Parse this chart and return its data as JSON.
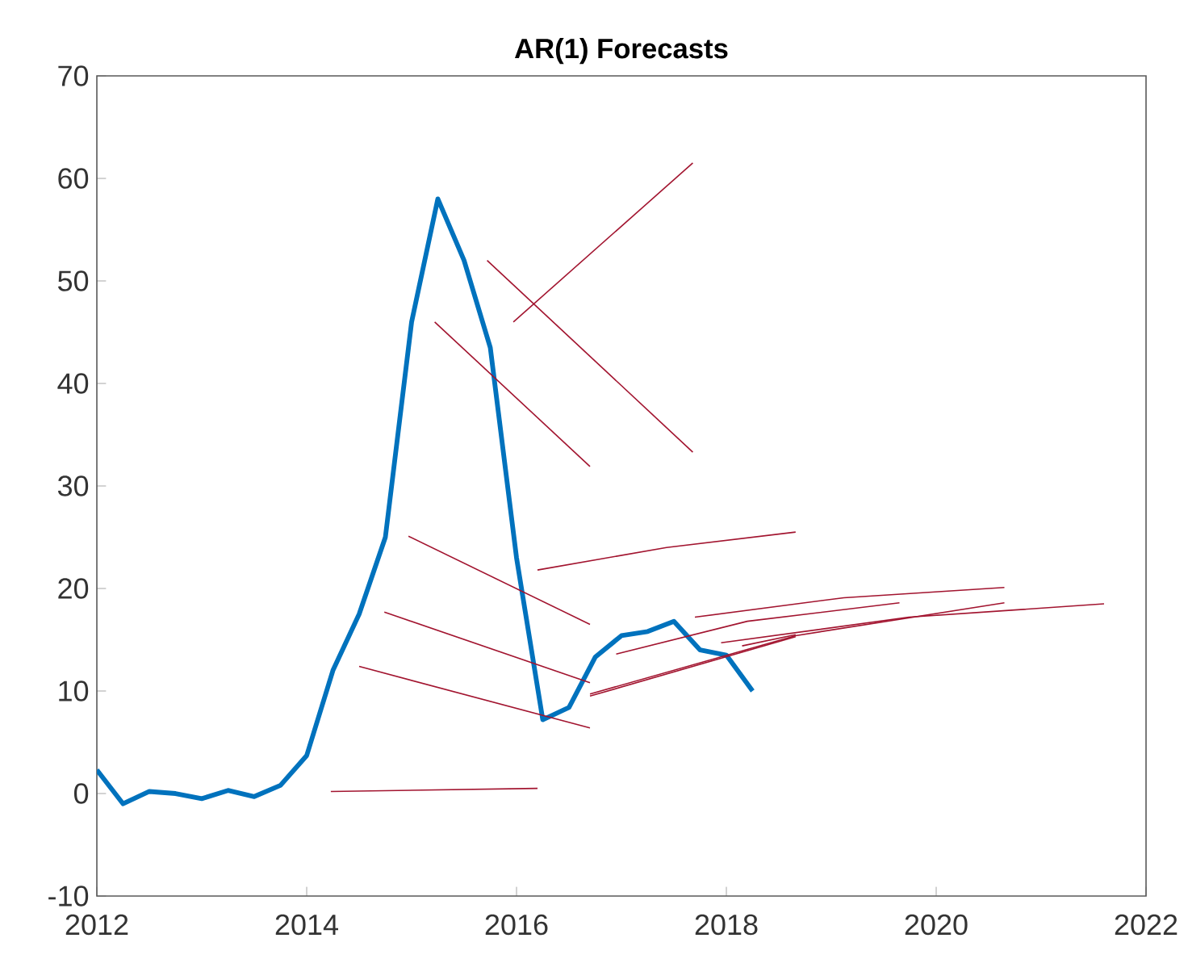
{
  "chart_data": {
    "type": "line",
    "title": "AR(1) Forecasts",
    "xlim": [
      2012,
      2022
    ],
    "xticks": [
      2012,
      2014,
      2016,
      2018,
      2020,
      2022
    ],
    "ylim": [
      -10,
      70
    ],
    "yticks": [
      -10,
      0,
      10,
      20,
      30,
      40,
      50,
      60,
      70
    ],
    "grid": false,
    "marker": "none",
    "line_style": "solid",
    "series": [
      {
        "color": "#0072bd",
        "x": [
          2012.0,
          2012.25,
          2012.5,
          2012.75,
          2013.0,
          2013.25,
          2013.5,
          2013.75,
          2014.0,
          2014.25,
          2014.5,
          2014.75,
          2015.0,
          2015.25,
          2015.5,
          2015.75,
          2016.0,
          2016.25,
          2016.5,
          2016.75,
          2017.0,
          2017.25,
          2017.5,
          2017.75,
          2018.0,
          2018.25
        ],
        "values": [
          2.3,
          -1,
          0.2,
          0,
          -0.5,
          0.3,
          -0.3,
          0.8,
          3.7,
          12,
          17.5,
          25,
          46,
          58,
          52,
          43.5,
          23,
          7.2,
          8.4,
          13.3,
          15.4,
          15.8,
          16.8,
          14,
          13.5,
          10
        ]
      },
      {
        "color": "#a2142f",
        "x": [
          2014.23,
          2016.2
        ],
        "values": [
          0.2,
          0.5
        ]
      },
      {
        "color": "#a2142f",
        "x": [
          2014.5,
          2016.7
        ],
        "values": [
          12.4,
          6.4
        ]
      },
      {
        "color": "#a2142f",
        "x": [
          2014.74,
          2016.7
        ],
        "values": [
          17.7,
          10.8
        ]
      },
      {
        "color": "#a2142f",
        "x": [
          2014.97,
          2016.7
        ],
        "values": [
          25.1,
          16.5
        ]
      },
      {
        "color": "#a2142f",
        "x": [
          2015.22,
          2016.7
        ],
        "values": [
          46,
          31.9
        ]
      },
      {
        "color": "#a2142f",
        "x": [
          2015.72,
          2017.68
        ],
        "values": [
          52,
          33.3
        ]
      },
      {
        "color": "#a2142f",
        "x": [
          2015.97,
          2017.68
        ],
        "values": [
          46,
          61.5
        ]
      },
      {
        "color": "#a2142f",
        "x": [
          2016.2,
          2017.43,
          2018.66
        ],
        "values": [
          21.8,
          24,
          25.5
        ]
      },
      {
        "color": "#a2142f",
        "x": [
          2016.7,
          2018.66,
          2020.65
        ],
        "values": [
          9.7,
          15.4,
          18.6
        ]
      },
      {
        "color": "#a2142f",
        "x": [
          2016.7,
          2018.66
        ],
        "values": [
          9.5,
          15.3
        ]
      },
      {
        "color": "#a2142f",
        "x": [
          2016.95,
          2018.2,
          2019.65
        ],
        "values": [
          13.6,
          16.8,
          18.6
        ]
      },
      {
        "color": "#a2142f",
        "x": [
          2017.7,
          2019.12,
          2020.65
        ],
        "values": [
          17.2,
          19.1,
          20.1
        ]
      },
      {
        "color": "#a2142f",
        "x": [
          2017.95,
          2019.74,
          2021.6
        ],
        "values": [
          14.7,
          17.2,
          18.5
        ]
      },
      {
        "color": "#a2142f",
        "x": [
          2018.15,
          2018.66
        ],
        "values": [
          14.4,
          15.5
        ]
      }
    ]
  }
}
